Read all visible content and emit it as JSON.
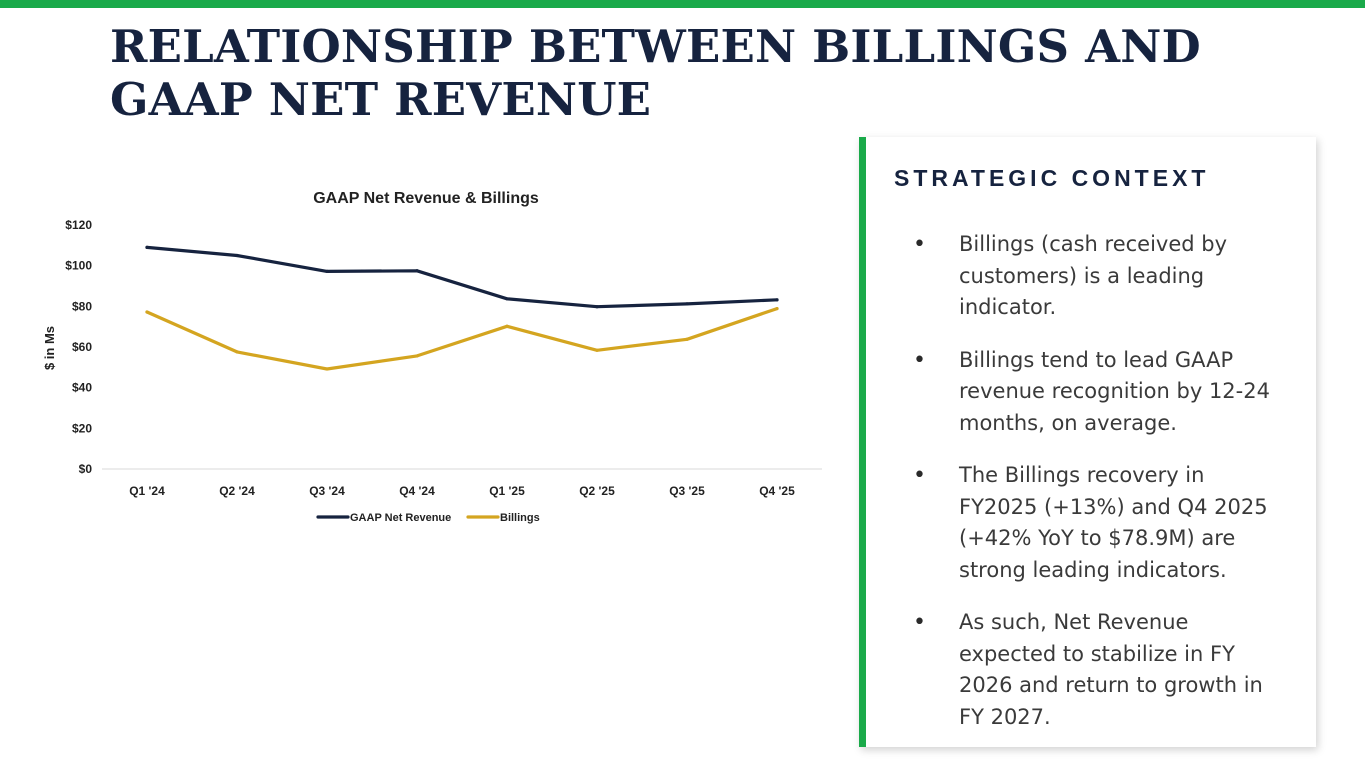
{
  "slide": {
    "title_lines": [
      "RELATIONSHIP BETWEEN BILLINGS AND",
      "GAAP NET REVENUE"
    ]
  },
  "colors": {
    "accent_green": "#1aaa4a",
    "navy": "#16233f",
    "gold": "#d4a520"
  },
  "chart_data": {
    "type": "line",
    "title": "GAAP Net Revenue & Billings",
    "xlabel": "",
    "ylabel": "$ in Ms",
    "categories": [
      "Q1 '24",
      "Q2 '24",
      "Q3 '24",
      "Q4 '24",
      "Q1 '25",
      "Q2 '25",
      "Q3 '25",
      "Q4 '25"
    ],
    "ylim": [
      0,
      120
    ],
    "yticks": [
      0,
      20,
      40,
      60,
      80,
      100,
      120
    ],
    "ytick_labels": [
      "$0",
      "$20",
      "$40",
      "$60",
      "$80",
      "$100",
      "$120"
    ],
    "grid": false,
    "legend_position": "bottom",
    "series": [
      {
        "name": "GAAP Net Revenue",
        "color": "#16233f",
        "values": [
          109.0,
          105.0,
          97.2,
          97.5,
          83.7,
          79.8,
          81.2,
          83.2
        ]
      },
      {
        "name": "Billings",
        "color": "#d4a520",
        "values": [
          77.2,
          57.6,
          49.2,
          55.6,
          70.2,
          58.4,
          63.8,
          78.9
        ]
      }
    ]
  },
  "context": {
    "heading": "STRATEGIC CONTEXT",
    "bullet_symbol": "•",
    "bullets": [
      "Billings (cash received by customers) is a leading indicator.",
      "Billings tend to lead GAAP revenue recognition by 12-24 months, on average.",
      "The Billings recovery in FY2025 (+13%) and Q4 2025 (+42% YoY to $78.9M) are strong leading indicators.",
      "As such, Net Revenue expected to stabilize in FY 2026 and return to growth in FY 2027."
    ]
  }
}
